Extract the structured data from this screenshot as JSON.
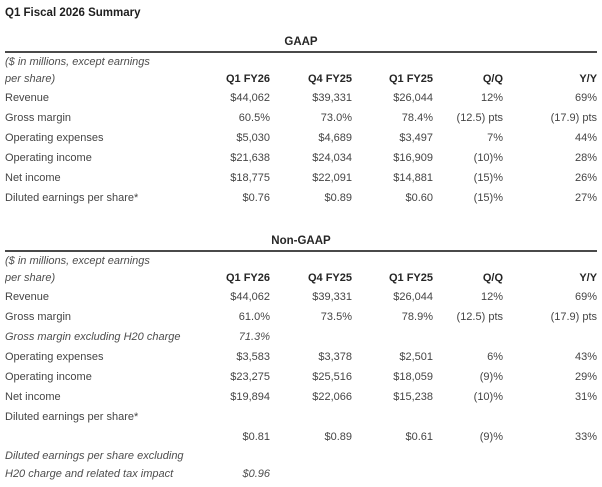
{
  "page_title": "Q1 Fiscal 2026 Summary",
  "units_note_line1": "($ in millions, except earnings",
  "units_note_line2": "per share)",
  "columns": [
    "Q1 FY26",
    "Q4 FY25",
    "Q1 FY25",
    "Q/Q",
    "Y/Y"
  ],
  "colors": {
    "text": "#454545",
    "heading_text": "#1e1e1e",
    "rule": "#4a4a4a",
    "background": "#ffffff"
  },
  "sections": [
    {
      "title": "GAAP",
      "rows": [
        {
          "label": "Revenue",
          "italic": false,
          "values": [
            "$44,062",
            "$39,331",
            "$26,044",
            "12%",
            "69%"
          ]
        },
        {
          "label": "Gross margin",
          "italic": false,
          "values": [
            "60.5%",
            "73.0%",
            "78.4%",
            "(12.5) pts",
            "(17.9) pts"
          ]
        },
        {
          "label": "Operating expenses",
          "italic": false,
          "values": [
            "$5,030",
            "$4,689",
            "$3,497",
            "7%",
            "44%"
          ]
        },
        {
          "label": "Operating income",
          "italic": false,
          "values": [
            "$21,638",
            "$24,034",
            "$16,909",
            "(10)%",
            "28%"
          ]
        },
        {
          "label": "Net income",
          "italic": false,
          "values": [
            "$18,775",
            "$22,091",
            "$14,881",
            "(15)%",
            "26%"
          ]
        },
        {
          "label": "Diluted earnings per share*",
          "italic": false,
          "values": [
            "$0.76",
            "$0.89",
            "$0.60",
            "(15)%",
            "27%"
          ]
        }
      ]
    },
    {
      "title": "Non-GAAP",
      "rows": [
        {
          "label": "Revenue",
          "italic": false,
          "values": [
            "$44,062",
            "$39,331",
            "$26,044",
            "12%",
            "69%"
          ]
        },
        {
          "label": "Gross margin",
          "italic": false,
          "values": [
            "61.0%",
            "73.5%",
            "78.9%",
            "(12.5) pts",
            "(17.9) pts"
          ]
        },
        {
          "label": "Gross margin excluding H20 charge",
          "italic": true,
          "values": [
            "71.3%",
            "",
            "",
            "",
            ""
          ]
        },
        {
          "label": "Operating expenses",
          "italic": false,
          "values": [
            "$3,583",
            "$3,378",
            "$2,501",
            "6%",
            "43%"
          ]
        },
        {
          "label": "Operating income",
          "italic": false,
          "values": [
            "$23,275",
            "$25,516",
            "$18,059",
            "(9)%",
            "29%"
          ]
        },
        {
          "label": "Net income",
          "italic": false,
          "values": [
            "$19,894",
            "$22,066",
            "$15,238",
            "(10)%",
            "31%"
          ]
        },
        {
          "label": "Diluted earnings per share*",
          "italic": false,
          "values": [
            "",
            "",
            "",
            "",
            ""
          ]
        },
        {
          "label": "",
          "italic": false,
          "values": [
            "$0.81",
            "$0.89",
            "$0.61",
            "(9)%",
            "33%"
          ]
        },
        {
          "label": "Diluted earnings per share excluding",
          "italic": true,
          "values": [
            "",
            "",
            "",
            "",
            ""
          ]
        },
        {
          "label": "H20 charge and related tax impact",
          "italic": true,
          "values": [
            "$0.96",
            "",
            "",
            "",
            ""
          ]
        }
      ]
    }
  ]
}
